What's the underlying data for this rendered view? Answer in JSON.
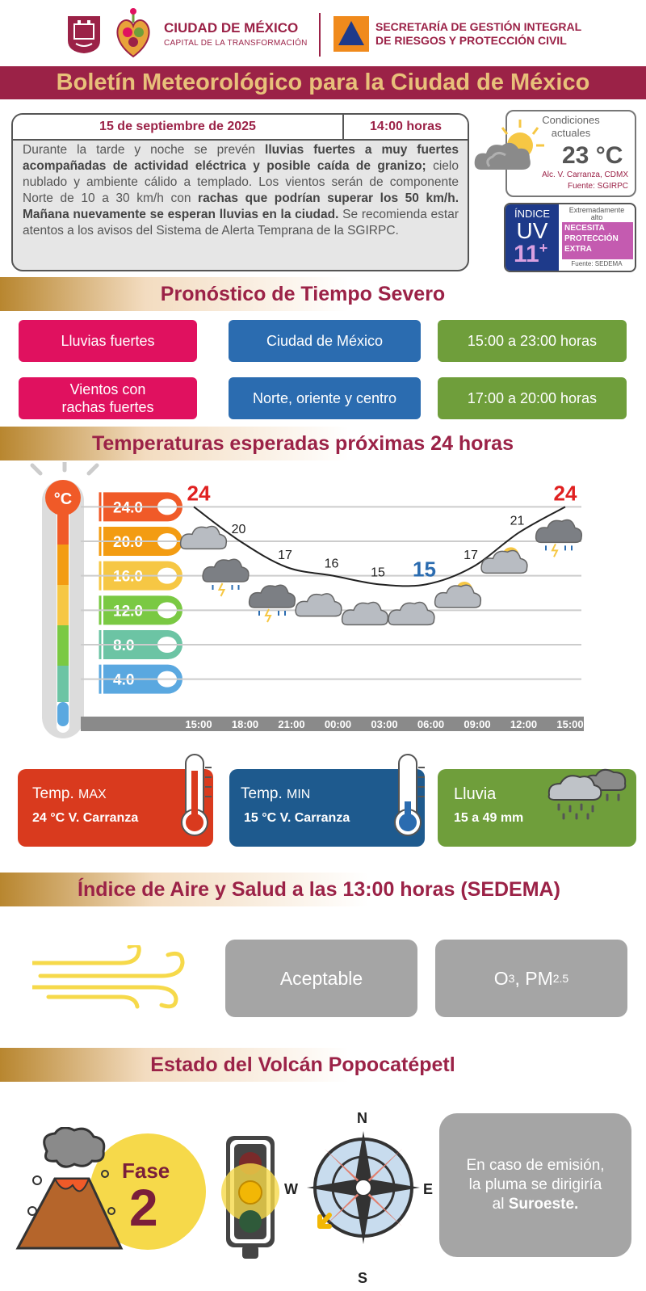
{
  "header": {
    "city_title": "CIUDAD DE MÉXICO",
    "city_subtitle": "CAPITAL DE LA TRANSFORMACIÓN",
    "secretaria_line1": "SECRETARÍA DE GESTIÓN INTEGRAL",
    "secretaria_line2": "DE RIESGOS Y PROTECCIÓN CIVIL"
  },
  "title": "Boletín Meteorológico para la Ciudad de México",
  "bulletin": {
    "date": "15 de septiembre de 2025",
    "hour": "14:00 horas",
    "text_1": "Durante la tarde y noche se prevén ",
    "text_2": "lluvias fuertes a muy fuertes acompañadas de actividad eléctrica y posible caída de granizo;",
    "text_3": " cielo nublado y ambiente cálido a templado. Los vientos serán de componente Norte de 10 a 30 km/h con ",
    "text_4": "rachas que podrían superar los 50 km/h. Mañana nuevamente se esperan lluvias en la ciudad.",
    "text_5": " Se recomienda estar atentos a los avisos del Sistema de Alerta Temprana de la SGIRPC."
  },
  "current": {
    "label_1": "Condiciones",
    "label_2": "actuales",
    "temp": "23 °C",
    "location": "Alc. V. Carranza, CDMX",
    "source": "Fuente: SGIRPC"
  },
  "uv": {
    "indice": "ÍNDICE",
    "uv": "UV",
    "value": "11",
    "plus": "+",
    "level_1": "Extremadamente",
    "level_2": "alto",
    "warn_1": "NECESITA",
    "warn_2": "PROTECCIÓN",
    "warn_3": "EXTRA",
    "source": "Fuente: SEDEMA"
  },
  "severe": {
    "title": "Pronóstico de Tiempo Severo",
    "rows": [
      {
        "phenomenon": "Lluvias fuertes",
        "area": "Ciudad de México",
        "time": "15:00 a 23:00 horas"
      },
      {
        "phenomenon_1": "Vientos con",
        "phenomenon_2": "rachas fuertes",
        "area": "Norte, oriente y centro",
        "time": "17:00 a 20:00 horas"
      }
    ]
  },
  "temps": {
    "title": "Temperaturas esperadas próximas 24 horas",
    "unit": "°C",
    "scale": [
      "24.0",
      "20.0",
      "16.0",
      "12.0",
      "8.0",
      "4.0"
    ],
    "max_card_label": "Temp.",
    "max_card_label2": "MAX",
    "max_value": "24 °C  V. Carranza",
    "min_card_label": "Temp.",
    "min_card_label2": "MIN",
    "min_value": "15 °C  V. Carranza",
    "rain_label": "Lluvia",
    "rain_value": "15 a 49 mm"
  },
  "chart_data": {
    "type": "line",
    "x": [
      "15:00",
      "18:00",
      "21:00",
      "00:00",
      "03:00",
      "06:00",
      "09:00",
      "12:00",
      "15:00"
    ],
    "values": [
      24,
      20,
      17,
      16,
      15,
      15,
      17,
      21,
      24
    ],
    "ylim": [
      2,
      26
    ],
    "conditions": [
      "cloudy",
      "storm",
      "storm",
      "cloudy",
      "cloudy",
      "cloudy",
      "partly-cloudy",
      "partly-cloudy",
      "storm"
    ],
    "max_color": "#e02020",
    "min_color": "#2b6cb0"
  },
  "air": {
    "title": "Índice de Aire y Salud a las 13:00 horas (SEDEMA)",
    "quality": "Aceptable",
    "pollutant_1": "O",
    "pollutant_1_sub": "3",
    "pollutant_sep": ", PM",
    "pollutant_2_sub": "2.5"
  },
  "volcano": {
    "title": "Estado del Volcán Popocatépetl",
    "fase_label": "Fase",
    "fase_value": "2",
    "compass_n": "N",
    "compass_s": "S",
    "compass_e": "E",
    "compass_w": "W",
    "plume_1": "En caso de emisión,",
    "plume_2": "la pluma se dirigiría",
    "plume_3": "al ",
    "plume_dir": "Suroeste."
  },
  "colors": {
    "brand": "#9b2247",
    "gold": "#e8c07a",
    "pink": "#e0115f",
    "blue": "#2b6cb0",
    "green": "#6f9e3b",
    "red": "#d93a1e"
  }
}
